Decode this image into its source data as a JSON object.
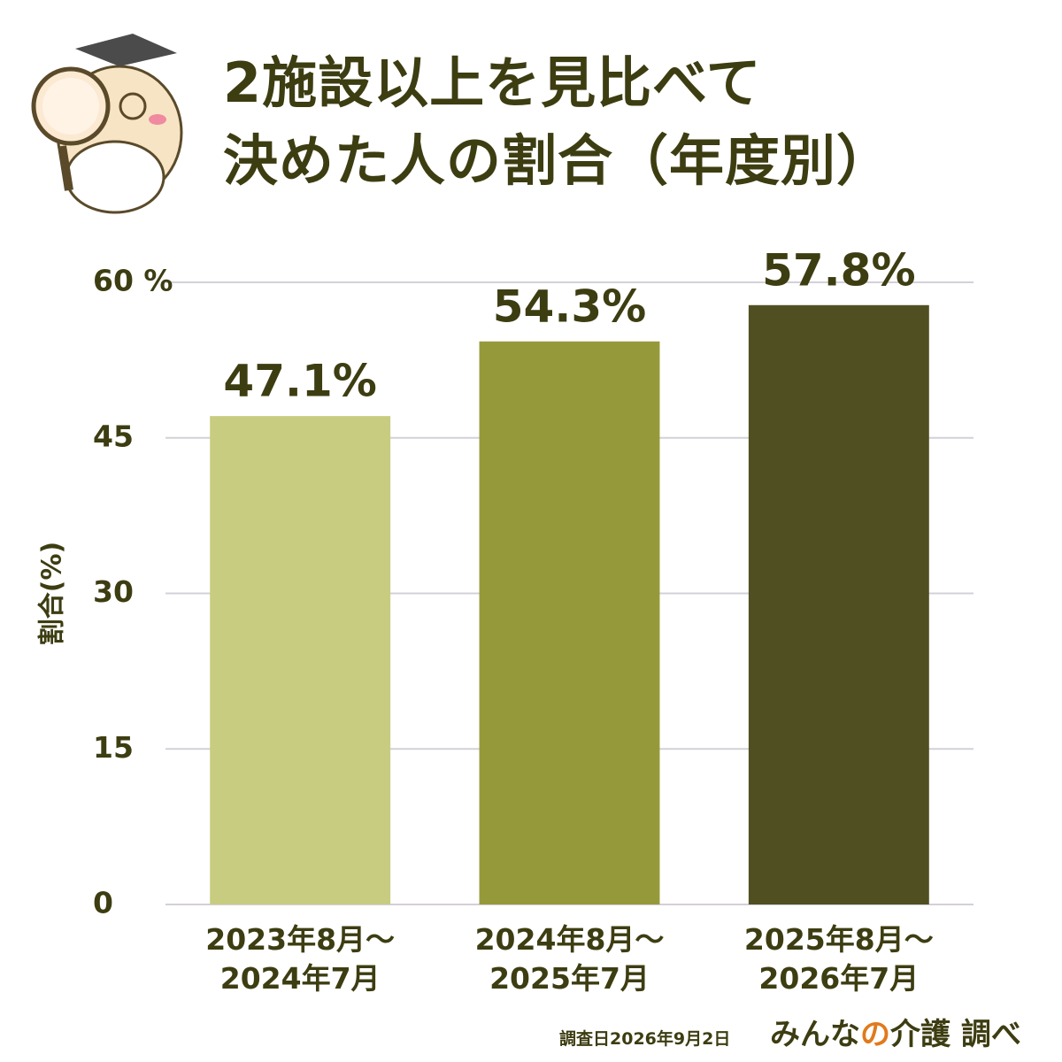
{
  "chart_data": {
    "type": "bar",
    "title": "2施設以上を見比べて\n決めた人の割合（年度別）",
    "y_label": "割合(%)",
    "categories": [
      "2023年8月〜\n2024年7月",
      "2024年8月〜\n2025年7月",
      "2025年8月〜\n2026年7月"
    ],
    "values": [
      47.1,
      54.3,
      57.8
    ],
    "value_labels": [
      "47.1%",
      "54.3%",
      "57.8%"
    ],
    "colors": [
      "#c8cc80",
      "#96993a",
      "#4f4f22"
    ],
    "ylim": [
      0,
      60
    ],
    "yticks": [
      0,
      15,
      30,
      45,
      {
        "value": 60,
        "label": "60 %"
      }
    ],
    "grid": true,
    "note": "調査日2026年9月2日",
    "source": [
      "みんな",
      "の",
      "介護",
      "調べ"
    ]
  }
}
